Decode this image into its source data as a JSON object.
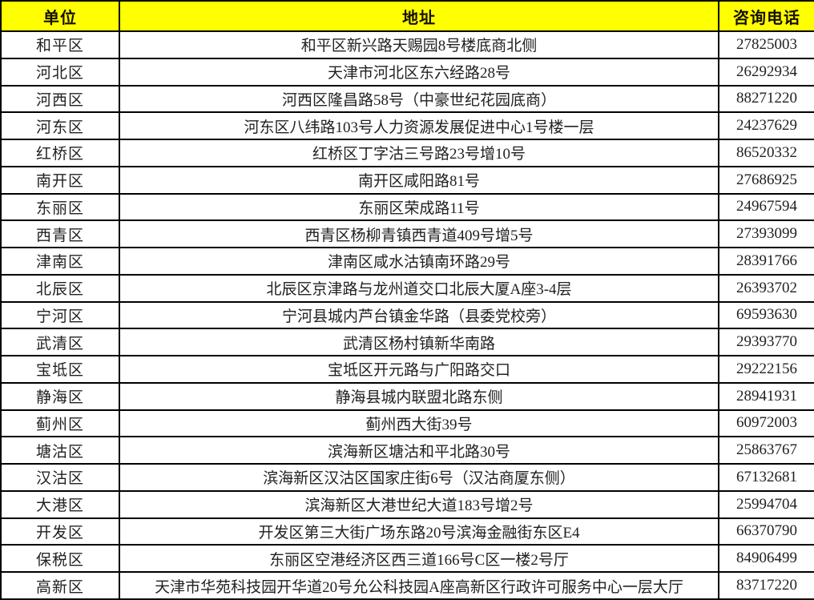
{
  "colors": {
    "header_bg": "#FFFF00",
    "header_text": "#171000",
    "body_text": "#212121",
    "border": "#000000"
  },
  "table": {
    "headers": [
      {
        "key": "unit",
        "label": "单位"
      },
      {
        "key": "address",
        "label": "地址"
      },
      {
        "key": "phone",
        "label": "咨询电话"
      }
    ],
    "rows": [
      {
        "unit": "和平区",
        "address": "和平区新兴路天赐园8号楼底商北侧",
        "phone": "27825003"
      },
      {
        "unit": "河北区",
        "address": "天津市河北区东六经路28号",
        "phone": "26292934"
      },
      {
        "unit": "河西区",
        "address": "河西区隆昌路58号（中豪世纪花园底商）",
        "phone": "88271220"
      },
      {
        "unit": "河东区",
        "address": "河东区八纬路103号人力资源发展促进中心1号楼一层",
        "phone": "24237629"
      },
      {
        "unit": "红桥区",
        "address": "红桥区丁字沽三号路23号增10号",
        "phone": "86520332"
      },
      {
        "unit": "南开区",
        "address": "南开区咸阳路81号",
        "phone": "27686925"
      },
      {
        "unit": "东丽区",
        "address": "东丽区荣成路11号",
        "phone": "24967594"
      },
      {
        "unit": "西青区",
        "address": "西青区杨柳青镇西青道409号增5号",
        "phone": "27393099"
      },
      {
        "unit": "津南区",
        "address": "津南区咸水沽镇南环路29号",
        "phone": "28391766"
      },
      {
        "unit": "北辰区",
        "address": "北辰区京津路与龙州道交口北辰大厦A座3-4层",
        "phone": "26393702"
      },
      {
        "unit": "宁河区",
        "address": "宁河县城内芦台镇金华路（县委党校旁）",
        "phone": "69593630"
      },
      {
        "unit": "武清区",
        "address": "武清区杨村镇新华南路",
        "phone": "29393770"
      },
      {
        "unit": "宝坻区",
        "address": "宝坻区开元路与广阳路交口",
        "phone": "29222156"
      },
      {
        "unit": "静海区",
        "address": "静海县城内联盟北路东侧",
        "phone": "28941931"
      },
      {
        "unit": "蓟州区",
        "address": "蓟州西大街39号",
        "phone": "60972003"
      },
      {
        "unit": "塘沽区",
        "address": "滨海新区塘沽和平北路30号",
        "phone": "25863767"
      },
      {
        "unit": "汉沽区",
        "address": "滨海新区汉沽区国家庄街6号（汉沽商厦东侧）",
        "phone": "67132681"
      },
      {
        "unit": "大港区",
        "address": "滨海新区大港世纪大道183号增2号",
        "phone": "25994704"
      },
      {
        "unit": "开发区",
        "address": "开发区第三大街广场东路20号滨海金融街东区E4",
        "phone": "66370790"
      },
      {
        "unit": "保税区",
        "address": "东丽区空港经济区西三道166号C区一楼2号厅",
        "phone": "84906499"
      },
      {
        "unit": "高新区",
        "address": "天津市华苑科技园开华道20号允公科技园A座高新区行政许可服务中心一层大厅",
        "phone": "83717220"
      }
    ]
  }
}
